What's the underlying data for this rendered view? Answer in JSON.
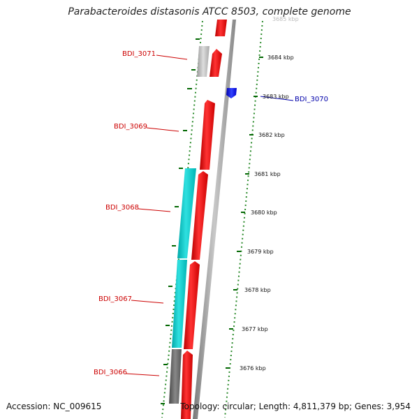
{
  "title": "Parabacteroides distasonis ATCC 8503, complete genome",
  "footer": {
    "accession": "Accession: NC_009615",
    "summary": "Topology: circular; Length: 4,811,379 bp; Genes: 3,954"
  },
  "genes": [
    {
      "id": "BDI_3071",
      "strand": "reverse",
      "color": "#cc0000"
    },
    {
      "id": "BDI_3070",
      "strand": "forward",
      "color": "#0000cc"
    },
    {
      "id": "BDI_3069",
      "strand": "reverse",
      "color": "#cc0000"
    },
    {
      "id": "BDI_3068",
      "strand": "reverse",
      "color": "#cc0000"
    },
    {
      "id": "BDI_3067",
      "strand": "reverse",
      "color": "#cc0000"
    },
    {
      "id": "BDI_3066",
      "strand": "reverse",
      "color": "#cc0000"
    }
  ],
  "coordinates": [
    {
      "label": "3685 kbp"
    },
    {
      "label": "3684 kbp"
    },
    {
      "label": "3683 kbp"
    },
    {
      "label": "3682 kbp"
    },
    {
      "label": "3681 kbp"
    },
    {
      "label": "3680 kbp"
    },
    {
      "label": "3679 kbp"
    },
    {
      "label": "3678 kbp"
    },
    {
      "label": "3677 kbp"
    },
    {
      "label": "3676 kbp"
    }
  ],
  "colors": {
    "reverse_gene": "#ff0000",
    "forward_gene": "#0000ff",
    "cog_cyan": "#00cccc",
    "cog_grey": "#bbbbbb",
    "cog_dark": "#666666",
    "backbone": "#999999",
    "tick_green": "#007700"
  }
}
